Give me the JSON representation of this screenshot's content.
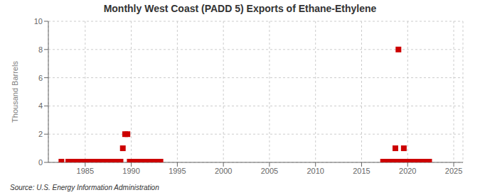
{
  "chart_data": {
    "type": "scatter",
    "title": "Monthly West Coast (PADD 5) Exports of Ethane-Ethylene",
    "ylabel": "Thousand Barrels",
    "source": "Source: U.S. Energy Information Administration",
    "color": "#cc0000",
    "marker": "square",
    "grid": true,
    "xlim": [
      1981,
      2026
    ],
    "ylim": [
      0,
      10
    ],
    "xticks": [
      1985,
      1990,
      1995,
      2000,
      2005,
      2010,
      2015,
      2020,
      2025
    ],
    "yticks": [
      0,
      2,
      4,
      6,
      8,
      10
    ],
    "x": [
      1982.4167,
      1983.1667,
      1983.5833,
      1984.0833,
      1984.3333,
      1984.5833,
      1984.8333,
      1985.0833,
      1985.3333,
      1985.5833,
      1985.8333,
      1986.0833,
      1986.3333,
      1986.5833,
      1986.8333,
      1987.0833,
      1987.3333,
      1987.5833,
      1987.8333,
      1988.0833,
      1988.3333,
      1988.5833,
      1988.8333,
      1989.0833,
      1989.3333,
      1989.5833,
      1989.8333,
      1990,
      1990.0833,
      1990.1667,
      1990.25,
      1990.3333,
      1990.4167,
      1990.5,
      1990.5833,
      1990.6667,
      1990.75,
      1990.8333,
      1990.9167,
      1991,
      1991.0833,
      1991.1667,
      1991.25,
      1991.3333,
      1991.4167,
      1991.5,
      1991.5833,
      1991.6667,
      1991.75,
      1991.8333,
      1991.9167,
      1992,
      1992.0833,
      1992.1667,
      1992.25,
      1992.3333,
      1992.4167,
      1992.5,
      1992.5833,
      1992.6667,
      1992.75,
      1992.8333,
      1992.9167,
      1993,
      1993.0833,
      1993.1667,
      2017.3333,
      2017.4167,
      2017.5,
      2017.5833,
      2017.6667,
      2017.75,
      2017.8333,
      2017.9167,
      2018,
      2018.0833,
      2018.1667,
      2018.25,
      2018.3333,
      2018.4167,
      2018.5,
      2018.5833,
      2018.6667,
      2018.75,
      2018.8333,
      2018.9167,
      2019,
      2019.0833,
      2019.1667,
      2019.25,
      2019.3333,
      2019.4167,
      2019.5,
      2019.5833,
      2019.6667,
      2019.75,
      2019.8333,
      2019.9167,
      2020,
      2020.0833,
      2020.1667,
      2020.25,
      2020.3333,
      2020.4167,
      2020.5,
      2020.5833,
      2020.6667,
      2020.75,
      2020.8333,
      2020.9167,
      2021,
      2021.0833,
      2021.1667,
      2021.25,
      2021.3333,
      2021.4167,
      2021.5,
      2021.5833,
      2021.6667,
      2021.75,
      2021.8333,
      2021.9167,
      2022,
      2022.0833,
      2022.1667,
      2022.25,
      2022.3333
    ],
    "values": [
      0.05,
      0.05,
      0.05,
      0.05,
      0.05,
      0.05,
      0.05,
      0.05,
      0.05,
      0.05,
      0.05,
      0.05,
      0.05,
      0.05,
      0.05,
      0.05,
      0.05,
      0.05,
      0.05,
      0.05,
      0.05,
      0.05,
      0.05,
      1,
      2,
      2,
      0.05,
      0.05,
      0.05,
      0.05,
      0.05,
      0.05,
      0.05,
      0.05,
      0.05,
      0.05,
      0.05,
      0.05,
      0.05,
      0.05,
      0.05,
      0.05,
      0.05,
      0.05,
      0.05,
      0.05,
      0.05,
      0.05,
      0.05,
      0.05,
      0.05,
      0.05,
      0.05,
      0.05,
      0.05,
      0.05,
      0.05,
      0.05,
      0.05,
      0.05,
      0.05,
      0.05,
      0.05,
      0.05,
      0.05,
      0.05,
      0.05,
      0.05,
      0.05,
      0.05,
      0.05,
      0.05,
      0.05,
      0.05,
      0.05,
      0.05,
      0.05,
      0.05,
      0.05,
      0.05,
      0.05,
      0.05,
      1,
      0.05,
      0.05,
      0.05,
      8,
      0.05,
      0.05,
      0.05,
      0.05,
      0.05,
      0.05,
      1,
      0.05,
      0.05,
      0.05,
      0.05,
      0.05,
      0.05,
      0.05,
      0.05,
      0.05,
      0.05,
      0.05,
      0.05,
      0.05,
      0.05,
      0.05,
      0.05,
      0.05,
      0.05,
      0.05,
      0.05,
      0.05,
      0.05,
      0.05,
      0.05,
      0.05,
      0.05,
      0.05,
      0.05,
      0.05,
      0.05,
      0.05,
      0.05,
      0.05
    ]
  }
}
